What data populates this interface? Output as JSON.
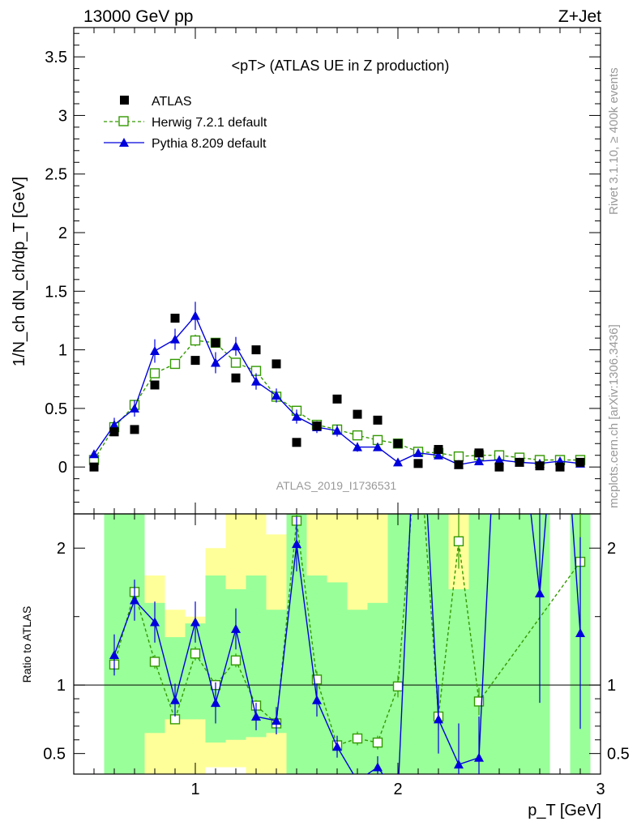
{
  "header": {
    "left": "13000 GeV pp",
    "right": "Z+Jet"
  },
  "side": {
    "rivet": "Rivet 3.1.10, ≥ 400k events",
    "mcplots": "mcplots.cern.ch [arXiv:1306.3436]"
  },
  "chart_data": {
    "type": "line",
    "title": "<pT> (ATLAS UE in Z production)",
    "analysis_label": "ATLAS_2019_I1736531",
    "xlabel": "p_T [GeV]",
    "ylabel": "1/N_ch dN_ch/dp_T [GeV]",
    "ratio_ylabel": "Ratio to ATLAS",
    "xlim": [
      0.4,
      3.0
    ],
    "ylim": [
      -0.4,
      3.75
    ],
    "ratio_ylim": [
      0.35,
      2.25
    ],
    "x_ticks": [
      1,
      2,
      3
    ],
    "y_ticks": [
      0,
      0.5,
      1,
      1.5,
      2,
      2.5,
      3,
      3.5
    ],
    "ratio_ticks": [
      0.5,
      1,
      2
    ],
    "grid": false,
    "legend_position": "top-left",
    "x": [
      0.6,
      0.7,
      0.8,
      0.9,
      1.0,
      1.1,
      1.2,
      1.3,
      1.4,
      1.5,
      1.6,
      1.7,
      1.8,
      1.9,
      2.0,
      2.1,
      2.2,
      2.3,
      2.4,
      2.5,
      2.6,
      2.7,
      2.8,
      2.9
    ],
    "data": {
      "name": "ATLAS",
      "x": [
        0.5,
        0.6,
        0.7,
        0.8,
        0.9,
        1.0,
        1.1,
        1.2,
        1.3,
        1.4,
        1.5,
        1.6,
        1.7,
        1.8,
        1.9,
        2.0,
        2.1,
        2.2,
        2.3,
        2.4,
        2.5,
        2.6,
        2.7,
        2.8,
        2.9
      ],
      "values": [
        0.0,
        0.3,
        0.32,
        0.7,
        1.27,
        0.91,
        1.06,
        0.76,
        1.0,
        0.88,
        0.21,
        0.35,
        0.58,
        0.45,
        0.4,
        0.2,
        0.03,
        0.15,
        0.02,
        0.12,
        0.0,
        0.04,
        0.01,
        0.0,
        0.04
      ]
    },
    "series": [
      {
        "name": "Herwig 7.2.1 default",
        "color": "#339900",
        "x": [
          0.5,
          0.6,
          0.7,
          0.8,
          0.9,
          1.0,
          1.1,
          1.2,
          1.3,
          1.4,
          1.5,
          1.6,
          1.7,
          1.8,
          1.9,
          2.0,
          2.1,
          2.2,
          2.3,
          2.4,
          2.5,
          2.6,
          2.7,
          2.8,
          2.9
        ],
        "values": [
          0.06,
          0.34,
          0.53,
          0.8,
          0.88,
          1.08,
          1.06,
          0.89,
          0.82,
          0.6,
          0.48,
          0.36,
          0.32,
          0.27,
          0.23,
          0.2,
          0.13,
          0.12,
          0.09,
          0.1,
          0.1,
          0.08,
          0.06,
          0.06,
          0.06
        ],
        "errors": [
          0.03,
          0.03,
          0.03,
          0.04,
          0.04,
          0.05,
          0.04,
          0.04,
          0.04,
          0.03,
          0.03,
          0.03,
          0.03,
          0.03,
          0.02,
          0.02,
          0.02,
          0.02,
          0.02,
          0.02,
          0.01,
          0.01,
          0.01,
          0.01,
          0.01
        ],
        "ratio_x": [
          0.6,
          0.7,
          0.8,
          0.9,
          1.0,
          1.1,
          1.2,
          1.3,
          1.4,
          1.5,
          1.6,
          1.7,
          1.8,
          1.9,
          2.0,
          2.1,
          2.2,
          2.3,
          2.4,
          2.9
        ],
        "ratio": [
          1.15,
          1.68,
          1.17,
          0.75,
          1.23,
          1.0,
          1.18,
          0.85,
          0.72,
          2.2,
          1.04,
          0.56,
          0.61,
          0.58,
          0.99,
          2.9,
          0.77,
          2.05,
          0.88,
          1.9
        ],
        "ratio_err": [
          0.05,
          0.05,
          0.05,
          0.03,
          0.05,
          0.04,
          0.05,
          0.04,
          0.04,
          0.1,
          0.06,
          0.04,
          0.05,
          0.05,
          0.08,
          0.3,
          0.1,
          0.2,
          0.1,
          0.4
        ]
      },
      {
        "name": "Pythia 8.209 default",
        "color": "#0000dd",
        "x": [
          0.5,
          0.6,
          0.7,
          0.8,
          0.9,
          1.0,
          1.1,
          1.2,
          1.3,
          1.4,
          1.5,
          1.6,
          1.7,
          1.8,
          1.9,
          2.0,
          2.1,
          2.2,
          2.3,
          2.4,
          2.5,
          2.6,
          2.7,
          2.8,
          2.9
        ],
        "values": [
          0.11,
          0.36,
          0.5,
          0.99,
          1.09,
          1.29,
          0.89,
          1.03,
          0.73,
          0.61,
          0.43,
          0.34,
          0.31,
          0.17,
          0.17,
          0.04,
          0.12,
          0.1,
          0.02,
          0.05,
          0.06,
          0.04,
          0.03,
          0.05,
          0.03
        ],
        "errors": [
          0.03,
          0.06,
          0.07,
          0.1,
          0.09,
          0.12,
          0.09,
          0.08,
          0.07,
          0.06,
          0.06,
          0.05,
          0.05,
          0.04,
          0.03,
          0.03,
          0.03,
          0.03,
          0.02,
          0.02,
          0.02,
          0.02,
          0.02,
          0.02,
          0.02
        ],
        "ratio_x": [
          0.6,
          0.7,
          0.8,
          0.9,
          1.0,
          1.1,
          1.2,
          1.3,
          1.4,
          1.5,
          1.6,
          1.7,
          1.8,
          1.9,
          2.0,
          2.1,
          2.2,
          2.3,
          2.4,
          2.5,
          2.6,
          2.7,
          2.8,
          2.9
        ],
        "ratio": [
          1.22,
          1.62,
          1.46,
          0.89,
          1.46,
          0.87,
          1.41,
          0.77,
          0.74,
          2.03,
          0.89,
          0.55,
          0.3,
          0.4,
          0.2,
          3.5,
          0.75,
          0.42,
          0.47,
          3.5,
          3.0,
          1.67,
          3.5,
          1.38
        ],
        "ratio_err": [
          0.15,
          0.15,
          0.15,
          0.12,
          0.15,
          0.15,
          0.15,
          0.1,
          0.1,
          0.2,
          0.12,
          0.08,
          0.05,
          0.08,
          0.1,
          0.3,
          0.25,
          0.3,
          0.3,
          0.3,
          0.3,
          0.8,
          0.3,
          0.7
        ]
      }
    ],
    "uncertainty_bands": [
      {
        "x0": 0.55,
        "x1": 0.65,
        "inner": [
          0.35,
          2.5
        ],
        "outer": [
          0.35,
          3.0
        ]
      },
      {
        "x0": 0.65,
        "x1": 0.75,
        "inner": [
          0.35,
          2.5
        ],
        "outer": [
          0.35,
          3.0
        ]
      },
      {
        "x0": 0.75,
        "x1": 0.85,
        "inner": [
          0.65,
          1.6
        ],
        "outer": [
          0.35,
          1.8
        ]
      },
      {
        "x0": 0.85,
        "x1": 0.95,
        "inner": [
          0.75,
          1.35
        ],
        "outer": [
          0.35,
          1.55
        ]
      },
      {
        "x0": 0.95,
        "x1": 1.05,
        "inner": [
          0.75,
          1.45
        ],
        "outer": [
          0.35,
          1.5
        ]
      },
      {
        "x0": 1.05,
        "x1": 1.15,
        "inner": [
          0.58,
          1.8
        ],
        "outer": [
          0.4,
          2.0
        ]
      },
      {
        "x0": 1.15,
        "x1": 1.25,
        "inner": [
          0.6,
          1.7
        ],
        "outer": [
          0.4,
          2.4
        ]
      },
      {
        "x0": 1.25,
        "x1": 1.35,
        "inner": [
          0.62,
          1.8
        ],
        "outer": [
          0.35,
          2.25
        ]
      },
      {
        "x0": 1.35,
        "x1": 1.45,
        "inner": [
          0.65,
          1.55
        ],
        "outer": [
          0.35,
          2.1
        ]
      },
      {
        "x0": 1.45,
        "x1": 1.55,
        "inner": [
          0.35,
          2.6
        ],
        "outer": [
          0.35,
          3.0
        ]
      },
      {
        "x0": 1.55,
        "x1": 1.65,
        "inner": [
          0.35,
          1.8
        ],
        "outer": [
          0.35,
          2.4
        ]
      },
      {
        "x0": 1.65,
        "x1": 1.75,
        "inner": [
          0.35,
          1.75
        ],
        "outer": [
          0.35,
          2.3
        ]
      },
      {
        "x0": 1.75,
        "x1": 1.85,
        "inner": [
          0.35,
          1.55
        ],
        "outer": [
          0.35,
          2.3
        ]
      },
      {
        "x0": 1.85,
        "x1": 1.95,
        "inner": [
          0.35,
          1.6
        ],
        "outer": [
          0.35,
          2.3
        ]
      },
      {
        "x0": 1.95,
        "x1": 2.05,
        "inner": [
          0.35,
          2.5
        ],
        "outer": [
          0.35,
          3.0
        ]
      },
      {
        "x0": 2.05,
        "x1": 2.15,
        "inner": [
          0.35,
          3.0
        ],
        "outer": [
          0.35,
          3.0
        ]
      },
      {
        "x0": 2.15,
        "x1": 2.25,
        "inner": [
          0.35,
          3.0
        ],
        "outer": [
          0.35,
          3.0
        ]
      },
      {
        "x0": 2.25,
        "x1": 2.35,
        "inner": [
          0.35,
          1.7
        ],
        "outer": [
          0.35,
          3.0
        ]
      },
      {
        "x0": 2.35,
        "x1": 2.45,
        "inner": [
          0.35,
          3.0
        ],
        "outer": [
          0.35,
          3.0
        ]
      },
      {
        "x0": 2.45,
        "x1": 2.55,
        "inner": [
          0.35,
          3.0
        ],
        "outer": [
          0.35,
          3.0
        ]
      },
      {
        "x0": 2.55,
        "x1": 2.65,
        "inner": [
          0.35,
          3.0
        ],
        "outer": [
          0.35,
          3.0
        ]
      },
      {
        "x0": 2.65,
        "x1": 2.75,
        "inner": [
          0.35,
          3.0
        ],
        "outer": [
          0.35,
          3.0
        ]
      },
      {
        "x0": 2.85,
        "x1": 2.95,
        "inner": [
          0.35,
          3.0
        ],
        "outer": [
          0.35,
          3.0
        ]
      }
    ],
    "colors": {
      "inner_band": "#99ff99",
      "outer_band": "#ffff99",
      "data": "#000000"
    }
  }
}
